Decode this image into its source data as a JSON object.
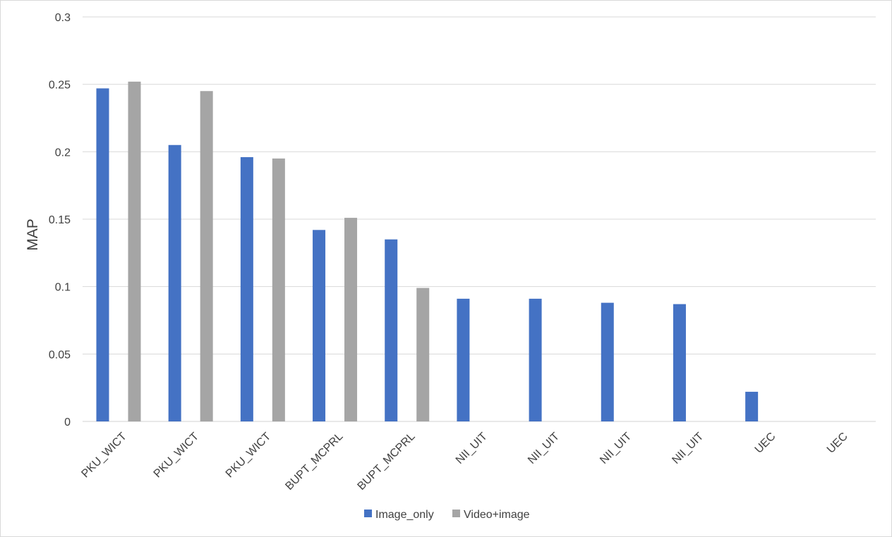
{
  "chart_data": {
    "type": "bar",
    "title": "",
    "xlabel": "",
    "ylabel": "MAP",
    "ylim": [
      0,
      0.3
    ],
    "yticks": [
      "0",
      "0.05",
      "0.1",
      "0.15",
      "0.2",
      "0.25",
      "0.3"
    ],
    "grid": true,
    "legend_position": "bottom",
    "categories": [
      "PKU_WICT",
      "PKU_WICT",
      "PKU_WICT",
      "BUPT_MCPRL",
      "BUPT_MCPRL",
      "NII_UIT",
      "NII_UIT",
      "NII_UIT",
      "NII_UIT",
      "UEC",
      "UEC"
    ],
    "series": [
      {
        "name": "Image_only",
        "color": "#4472c4",
        "values": [
          0.247,
          0.205,
          0.196,
          0.142,
          0.135,
          0.091,
          0.091,
          0.088,
          0.087,
          0.022,
          0
        ]
      },
      {
        "name": "Video+image",
        "color": "#a5a5a5",
        "values": [
          0.252,
          0.245,
          0.195,
          0.151,
          0.099,
          0,
          0,
          0,
          0,
          0,
          0
        ]
      }
    ]
  }
}
